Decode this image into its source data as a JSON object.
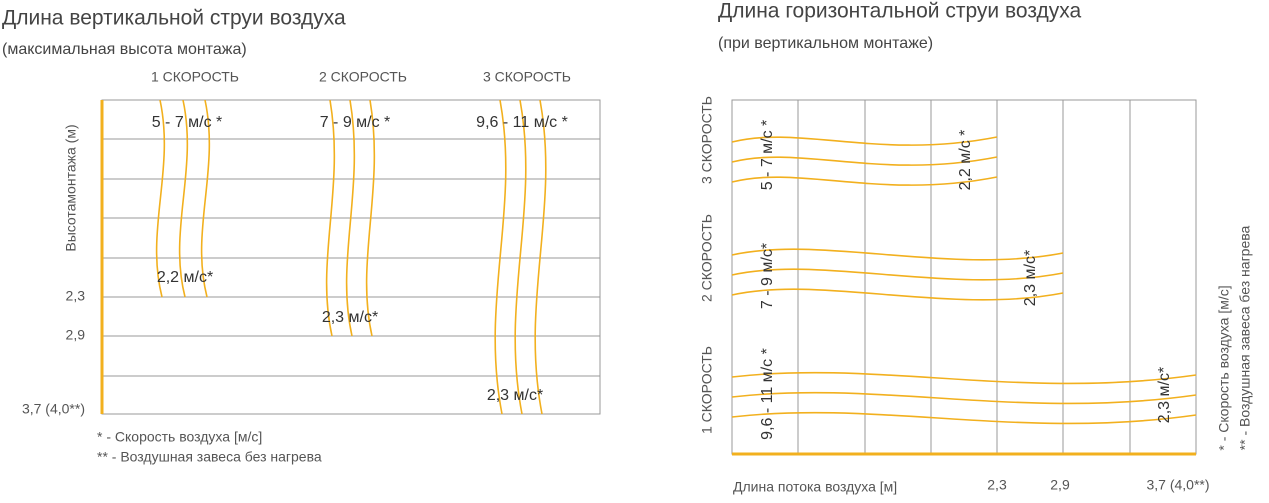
{
  "left": {
    "title": "Длина вертикальной струи воздуха",
    "subtitle": "(максимальная высота монтажа)",
    "columns": [
      "1 СКОРОСТЬ",
      "2 СКОРОСТЬ",
      "3 СКОРОСТЬ"
    ],
    "axis_label": "Высотамонтажа (м)",
    "row_labels": [
      "2,3",
      "2,9",
      "3,7 (4,0**)"
    ],
    "speed_labels": [
      "5 - 7 м/с  *",
      "7 - 9 м/с  *",
      "9,6 - 11 м/с  *"
    ],
    "end_labels": [
      "2,2 м/с*",
      "2,3 м/с*",
      "2,3 м/с*"
    ],
    "footnotes": [
      "* - Скорость воздуха [м/с]",
      "** - Воздушная завеса без нагрева"
    ]
  },
  "right": {
    "title": "Длина горизонтальной струи воздуха",
    "subtitle": "(при вертикальном монтаже)",
    "rows": [
      "3 СКОРОСТЬ",
      "2 СКОРОСТЬ",
      "1 СКОРОСТЬ"
    ],
    "speed_labels": [
      "5 - 7 м/с *",
      "7 - 9 м/с*",
      "9,6 - 11 м/с *"
    ],
    "end_labels": [
      "2,2 м/с *",
      "2,3 м/с*",
      "2,3 м/с*"
    ],
    "axis_label": "Длина потока воздуха [м]",
    "column_labels": [
      "2,3",
      "2,9",
      "3,7 (4,0**)"
    ],
    "footnotes": [
      "* - Скорость воздуха [м/с]",
      "** - Воздушная завеса без нагрева"
    ]
  }
}
